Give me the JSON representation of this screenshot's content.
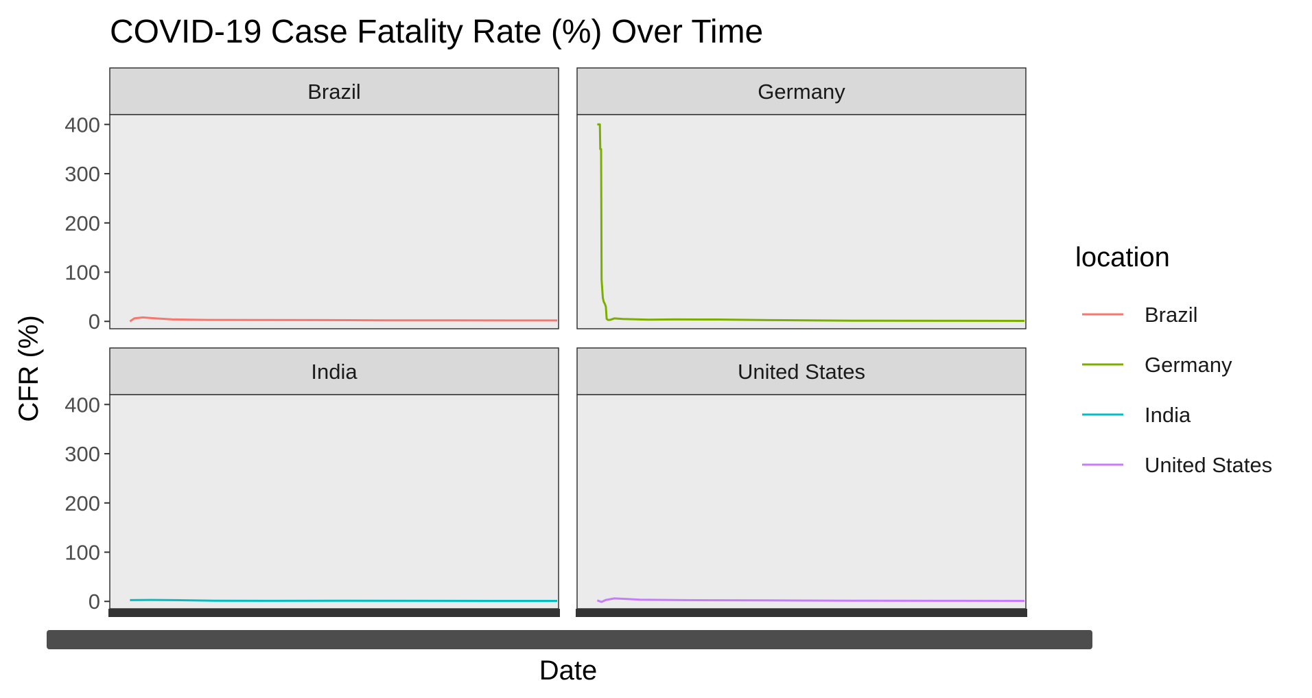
{
  "chart_data": {
    "type": "line",
    "title": "COVID-19 Case Fatality Rate (%) Over Time",
    "xlabel": "Date",
    "ylabel": "CFR (%)",
    "ylim": [
      -15,
      420
    ],
    "y_ticks": [
      0,
      100,
      200,
      300,
      400
    ],
    "x_tick_labels_note": "overlapping illegible dates",
    "grid": false,
    "legend": {
      "title": "location",
      "placement": "right"
    },
    "facets": [
      "Brazil",
      "Germany",
      "India",
      "United States"
    ],
    "series": [
      {
        "name": "Brazil",
        "color": "#F8766D",
        "x": [
          0.0,
          0.01,
          0.03,
          0.06,
          0.1,
          0.18,
          0.3,
          0.45,
          0.6,
          0.75,
          0.88,
          1.0
        ],
        "values": [
          0,
          6,
          8,
          6,
          4,
          3,
          2.8,
          2.6,
          2.2,
          2.0,
          1.9,
          1.9
        ]
      },
      {
        "name": "Germany",
        "color": "#7CAE00",
        "x": [
          0.0,
          0.006,
          0.007,
          0.009,
          0.01,
          0.013,
          0.015,
          0.018,
          0.02,
          0.022,
          0.025,
          0.03,
          0.04,
          0.06,
          0.12,
          0.18,
          0.28,
          0.4,
          0.6,
          0.8,
          1.0
        ],
        "values": [
          400,
          400,
          350,
          350,
          85,
          48,
          40,
          35,
          30,
          5,
          3,
          3,
          6,
          5,
          3.5,
          4,
          3.8,
          2.5,
          1.5,
          1.2,
          1.0
        ]
      },
      {
        "name": "India",
        "color": "#00BFC4",
        "x": [
          0.0,
          0.05,
          0.1,
          0.2,
          0.35,
          0.5,
          0.7,
          0.85,
          1.0
        ],
        "values": [
          2.5,
          3.0,
          2.5,
          1.5,
          1.2,
          1.3,
          1.2,
          1.1,
          1.1
        ]
      },
      {
        "name": "United States",
        "color": "#C77CFF",
        "x": [
          0.0,
          0.01,
          0.02,
          0.04,
          0.07,
          0.1,
          0.2,
          0.4,
          0.6,
          0.8,
          1.0
        ],
        "values": [
          2,
          -1,
          3,
          6,
          5,
          3.5,
          2.5,
          2.0,
          1.5,
          1.2,
          1.0
        ]
      }
    ]
  }
}
